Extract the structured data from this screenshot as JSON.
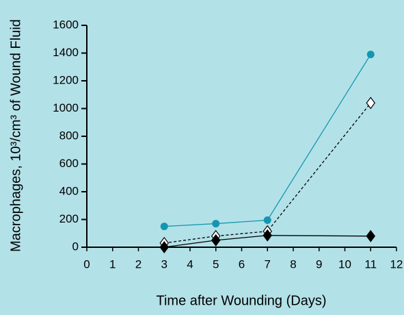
{
  "chart_data": {
    "type": "line",
    "x_label": "Time after Wounding (Days)",
    "y_label": "Macrophages, 10³/cm³ of Wound Fluid",
    "x": [
      3,
      5,
      7,
      11
    ],
    "xlim": [
      0,
      12
    ],
    "xticks": [
      0,
      1,
      2,
      3,
      4,
      5,
      6,
      7,
      8,
      9,
      10,
      11,
      12
    ],
    "ylim": [
      0,
      1600
    ],
    "yticks": [
      0,
      200,
      400,
      600,
      800,
      1000,
      1200,
      1400,
      1600
    ],
    "series": [
      {
        "color": "#1596b0",
        "marker": "circle",
        "marker_fill": "#1596b0",
        "dashed": false,
        "values": [
          150,
          170,
          195,
          1390
        ]
      },
      {
        "color": "#000000",
        "marker": "diamond",
        "marker_fill": "#ffffff",
        "dashed": true,
        "values": [
          30,
          80,
          115,
          1040
        ]
      },
      {
        "color": "#000000",
        "marker": "diamond",
        "marker_fill": "#000000",
        "dashed": false,
        "values": [
          0,
          50,
          85,
          80
        ]
      }
    ]
  }
}
